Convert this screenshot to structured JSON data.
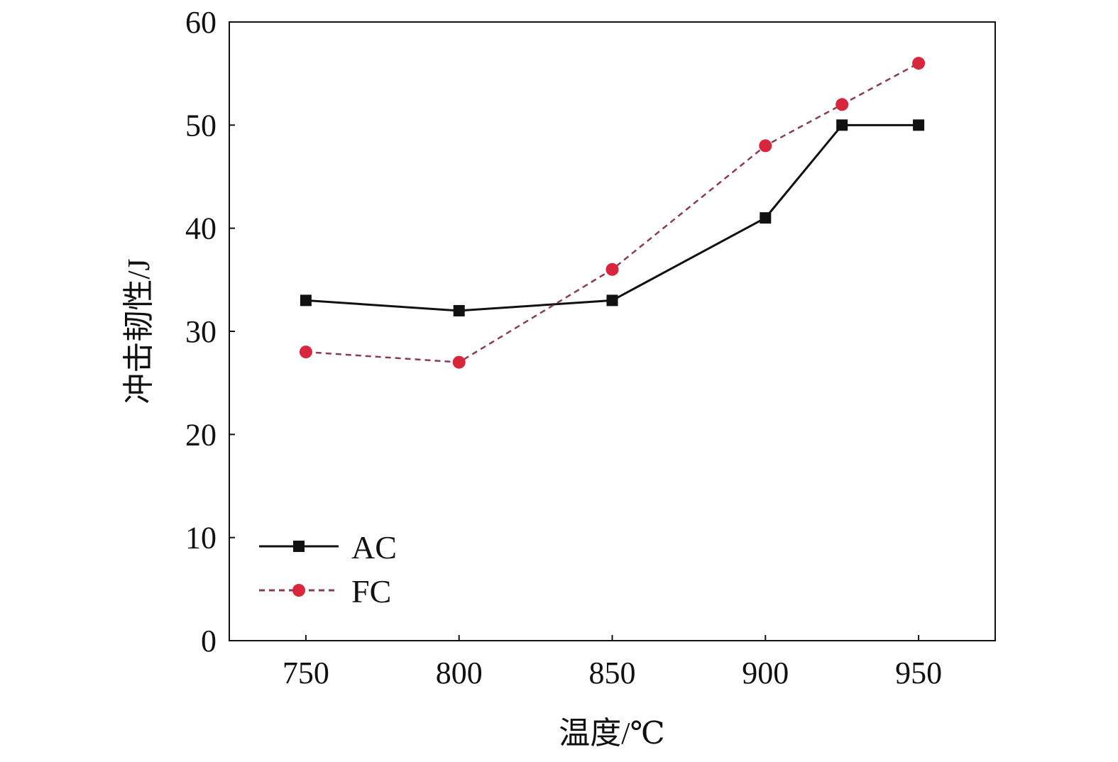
{
  "chart_data": {
    "type": "line",
    "title": "",
    "xlabel": "温度/℃",
    "ylabel": "冲击韧性/J",
    "xlim": [
      725,
      975
    ],
    "ylim": [
      0,
      60
    ],
    "xticks": [
      750,
      800,
      850,
      900,
      950
    ],
    "yticks": [
      0,
      10,
      20,
      30,
      40,
      50,
      60
    ],
    "grid": false,
    "legend_position": "bottom-left",
    "series": [
      {
        "name": "AC",
        "x": [
          750,
          800,
          850,
          900,
          925,
          950
        ],
        "y": [
          33,
          32,
          33,
          41,
          50,
          50
        ],
        "color": "#111111",
        "marker": "square",
        "line": "solid"
      },
      {
        "name": "FC",
        "x": [
          750,
          800,
          850,
          900,
          925,
          950
        ],
        "y": [
          28,
          27,
          36,
          48,
          52,
          56
        ],
        "color": "#d8263c",
        "line_color": "#8a3b5a",
        "marker": "circle",
        "line": "dashed"
      }
    ]
  }
}
